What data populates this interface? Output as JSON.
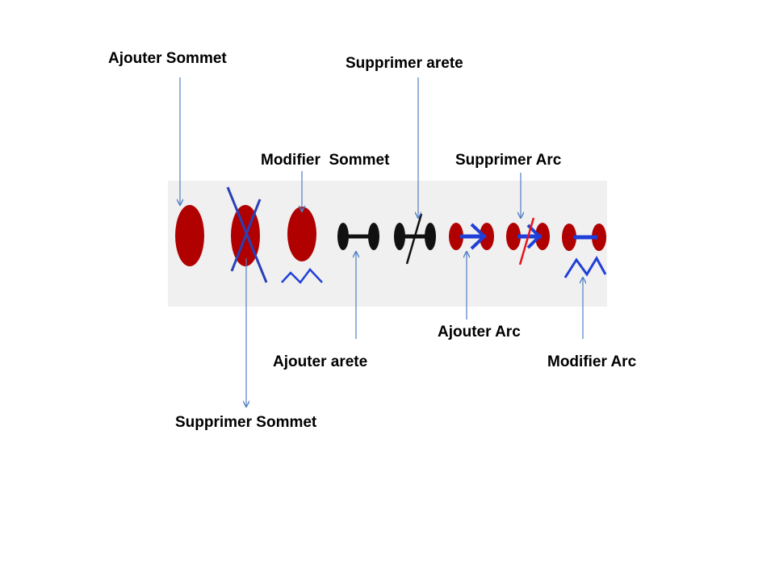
{
  "colors": {
    "vertex": "#b00000",
    "edge": "#111111",
    "arc": "#1f3fd8",
    "strike": "#e8141e",
    "pointer": "#4f7fc4",
    "toolbar": "#f0f0f0"
  },
  "labels": {
    "ajouter_sommet": "Ajouter Sommet",
    "supprimer_arete": "Supprimer arete",
    "modifier_sommet": "Modifier  Sommet",
    "supprimer_arc": "Supprimer Arc",
    "ajouter_arete": "Ajouter arete",
    "ajouter_arc": "Ajouter Arc",
    "modifier_arc": "Modifier Arc",
    "supprimer_sommet": "Supprimer Sommet"
  },
  "toolbar": {
    "buttons": [
      {
        "name": "add-vertex-button",
        "icon": "vertex-icon",
        "action": "ajouter_sommet"
      },
      {
        "name": "delete-vertex-button",
        "icon": "vertex-crossed-icon",
        "action": "supprimer_sommet"
      },
      {
        "name": "edit-vertex-button",
        "icon": "vertex-edit-icon",
        "action": "modifier_sommet"
      },
      {
        "name": "add-edge-button",
        "icon": "edge-icon",
        "action": "ajouter_arete"
      },
      {
        "name": "delete-edge-button",
        "icon": "edge-crossed-icon",
        "action": "supprimer_arete"
      },
      {
        "name": "add-arc-button",
        "icon": "arc-icon",
        "action": "ajouter_arc"
      },
      {
        "name": "delete-arc-button",
        "icon": "arc-crossed-icon",
        "action": "supprimer_arc"
      },
      {
        "name": "edit-arc-button",
        "icon": "arc-edit-icon",
        "action": "modifier_arc"
      }
    ]
  }
}
